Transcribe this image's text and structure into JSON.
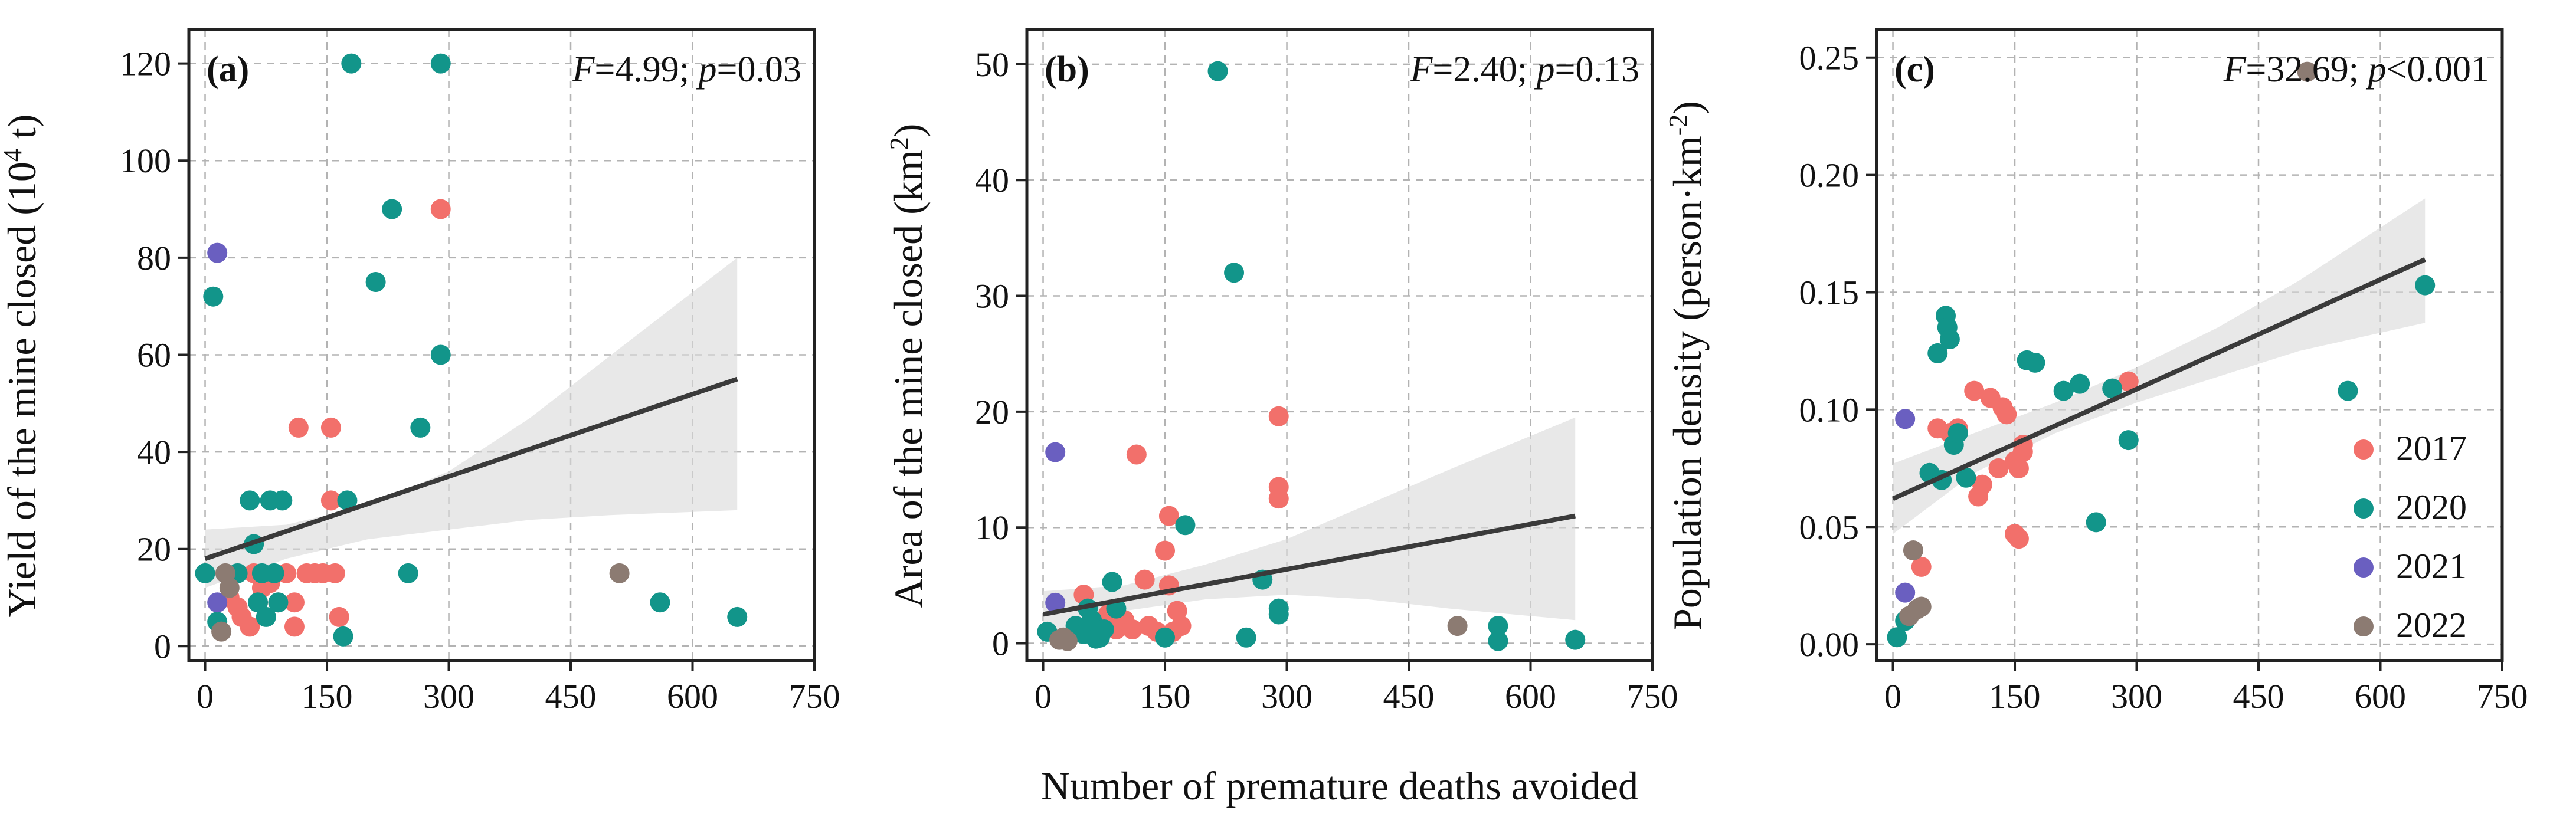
{
  "figure": {
    "shared_xlabel": "Number of premature deaths avoided"
  },
  "colors": {
    "2017": "#f2706b",
    "2020": "#12958a",
    "2021": "#6a5fc0",
    "2022": "#8c7b72",
    "fit": "#3a3a3a",
    "band": "#d9d9d9"
  },
  "legend": [
    {
      "label": "2017",
      "series": "2017"
    },
    {
      "label": "2020",
      "series": "2020"
    },
    {
      "label": "2021",
      "series": "2021"
    },
    {
      "label": "2022",
      "series": "2022"
    }
  ],
  "chart_data": [
    {
      "type": "scatter",
      "panel": "(a)",
      "stat_label": "F=4.99; p=0.03",
      "stat": {
        "F_sym": "F",
        "F_val": "=4.99; ",
        "p_sym": "p",
        "p_val": "=0.03"
      },
      "ylabel": "Yield of the mine closed (10^4 t)",
      "ylabel_parts": {
        "pre": "Yield of the mine closed (10",
        "sup": "4",
        "post": " t)"
      },
      "xlim": [
        -20,
        750
      ],
      "ylim": [
        -3,
        127
      ],
      "xticks": [
        0,
        150,
        300,
        450,
        600,
        750
      ],
      "xtick_labels": [
        "0",
        "150",
        "300",
        "450",
        "600",
        "750"
      ],
      "yticks": [
        0,
        20,
        40,
        60,
        80,
        100,
        120
      ],
      "ytick_labels": [
        "0",
        "20",
        "40",
        "60",
        "80",
        "100",
        "120"
      ],
      "fit": {
        "x": [
          0,
          655
        ],
        "y": [
          18,
          55
        ]
      },
      "band": {
        "x": [
          0,
          100,
          200,
          300,
          400,
          500,
          655
        ],
        "lower": [
          12,
          18,
          22,
          24,
          26,
          27,
          28
        ],
        "upper": [
          24,
          25,
          29,
          36,
          47,
          60,
          80
        ]
      },
      "series": [
        {
          "name": "2017",
          "points": [
            [
              30,
              10
            ],
            [
              40,
              8
            ],
            [
              45,
              6
            ],
            [
              55,
              4
            ],
            [
              60,
              15
            ],
            [
              65,
              9
            ],
            [
              70,
              12
            ],
            [
              80,
              13
            ],
            [
              90,
              9
            ],
            [
              100,
              15
            ],
            [
              110,
              9
            ],
            [
              110,
              4
            ],
            [
              115,
              45
            ],
            [
              125,
              15
            ],
            [
              135,
              15
            ],
            [
              145,
              15
            ],
            [
              155,
              30
            ],
            [
              155,
              45
            ],
            [
              160,
              15
            ],
            [
              165,
              6
            ],
            [
              290,
              90
            ]
          ]
        },
        {
          "name": "2020",
          "points": [
            [
              0,
              15
            ],
            [
              10,
              72
            ],
            [
              15,
              5
            ],
            [
              40,
              15
            ],
            [
              55,
              30
            ],
            [
              60,
              21
            ],
            [
              65,
              9
            ],
            [
              70,
              15
            ],
            [
              75,
              6
            ],
            [
              80,
              30
            ],
            [
              85,
              15
            ],
            [
              90,
              9
            ],
            [
              95,
              30
            ],
            [
              170,
              2
            ],
            [
              175,
              30
            ],
            [
              180,
              120
            ],
            [
              210,
              75
            ],
            [
              230,
              90
            ],
            [
              250,
              15
            ],
            [
              265,
              45
            ],
            [
              290,
              60
            ],
            [
              290,
              120
            ],
            [
              560,
              9
            ],
            [
              655,
              6
            ]
          ]
        },
        {
          "name": "2021",
          "points": [
            [
              15,
              81
            ],
            [
              15,
              9
            ]
          ]
        },
        {
          "name": "2022",
          "points": [
            [
              20,
              3
            ],
            [
              25,
              15
            ],
            [
              30,
              12
            ],
            [
              510,
              15
            ]
          ]
        }
      ]
    },
    {
      "type": "scatter",
      "panel": "(b)",
      "stat_label": "F=2.40; p=0.13",
      "stat": {
        "F_sym": "F",
        "F_val": "=2.40; ",
        "p_sym": "p",
        "p_val": "=0.13"
      },
      "ylabel": "Area of the mine closed (km^2)",
      "ylabel_parts": {
        "pre": "Area of the mine closed (km",
        "sup": "2",
        "post": ")"
      },
      "xlim": [
        -20,
        750
      ],
      "ylim": [
        -1.5,
        53
      ],
      "xticks": [
        0,
        150,
        300,
        450,
        600,
        750
      ],
      "xtick_labels": [
        "0",
        "150",
        "300",
        "450",
        "600",
        "750"
      ],
      "yticks": [
        0,
        10,
        20,
        30,
        40,
        50
      ],
      "ytick_labels": [
        "0",
        "10",
        "20",
        "30",
        "40",
        "50"
      ],
      "fit": {
        "x": [
          0,
          655
        ],
        "y": [
          2.5,
          11
        ]
      },
      "band": {
        "x": [
          0,
          100,
          200,
          300,
          400,
          500,
          655
        ],
        "lower": [
          0.5,
          2.8,
          3.8,
          4.2,
          3.8,
          3.0,
          2.0
        ],
        "upper": [
          4.5,
          5.0,
          6.8,
          9.0,
          12.0,
          15.0,
          19.5
        ]
      },
      "series": [
        {
          "name": "2017",
          "points": [
            [
              50,
              4.2
            ],
            [
              60,
              1.5
            ],
            [
              80,
              2.5
            ],
            [
              90,
              1.2
            ],
            [
              100,
              2
            ],
            [
              110,
              1.2
            ],
            [
              115,
              16.3
            ],
            [
              125,
              5.5
            ],
            [
              130,
              1.5
            ],
            [
              140,
              1.0
            ],
            [
              150,
              8.0
            ],
            [
              155,
              11
            ],
            [
              155,
              5.0
            ],
            [
              160,
              1.0
            ],
            [
              165,
              2.8
            ],
            [
              170,
              1.5
            ],
            [
              290,
              19.6
            ],
            [
              290,
              13.5
            ],
            [
              290,
              12.5
            ]
          ]
        },
        {
          "name": "2020",
          "points": [
            [
              5,
              1.0
            ],
            [
              40,
              1.5
            ],
            [
              50,
              0.8
            ],
            [
              55,
              3.0
            ],
            [
              60,
              2.0
            ],
            [
              65,
              0.4
            ],
            [
              70,
              0.5
            ],
            [
              75,
              1.2
            ],
            [
              85,
              5.3
            ],
            [
              90,
              3.0
            ],
            [
              150,
              0.5
            ],
            [
              175,
              10.2
            ],
            [
              215,
              49.4
            ],
            [
              235,
              32
            ],
            [
              250,
              0.5
            ],
            [
              270,
              5.5
            ],
            [
              290,
              3.0
            ],
            [
              290,
              2.5
            ],
            [
              560,
              1.5
            ],
            [
              560,
              0.2
            ],
            [
              655,
              0.3
            ]
          ]
        },
        {
          "name": "2021",
          "points": [
            [
              15,
              16.5
            ],
            [
              15,
              3.5
            ]
          ]
        },
        {
          "name": "2022",
          "points": [
            [
              20,
              0.3
            ],
            [
              25,
              0.5
            ],
            [
              30,
              0.2
            ],
            [
              510,
              1.5
            ]
          ]
        }
      ]
    },
    {
      "type": "scatter",
      "panel": "(c)",
      "stat_label": "F=32.69; p<0.001",
      "stat": {
        "F_sym": "F",
        "F_val": "=32.69; ",
        "p_sym": "p",
        "p_val": "<0.001"
      },
      "ylabel": "Population density (person·km^-2)",
      "ylabel_parts": {
        "pre": "Population density (person·km",
        "sup": "-2",
        "post": ")"
      },
      "xlim": [
        -20,
        750
      ],
      "ylim": [
        -0.007,
        0.262
      ],
      "xticks": [
        0,
        150,
        300,
        450,
        600,
        750
      ],
      "xtick_labels": [
        "0",
        "150",
        "300",
        "450",
        "600",
        "750"
      ],
      "yticks": [
        0,
        0.05,
        0.1,
        0.15,
        0.2,
        0.25
      ],
      "ytick_labels": [
        "0.00",
        "0.05",
        "0.10",
        "0.15",
        "0.20",
        "0.25"
      ],
      "fit": {
        "x": [
          0,
          655
        ],
        "y": [
          0.062,
          0.164
        ]
      },
      "band": {
        "x": [
          0,
          100,
          200,
          300,
          400,
          500,
          655
        ],
        "lower": [
          0.047,
          0.073,
          0.09,
          0.103,
          0.114,
          0.125,
          0.137
        ],
        "upper": [
          0.077,
          0.09,
          0.103,
          0.118,
          0.135,
          0.155,
          0.19
        ]
      },
      "series": [
        {
          "name": "2017",
          "points": [
            [
              35,
              0.033
            ],
            [
              55,
              0.092
            ],
            [
              70,
              0.09
            ],
            [
              80,
              0.092
            ],
            [
              100,
              0.108
            ],
            [
              105,
              0.063
            ],
            [
              110,
              0.068
            ],
            [
              120,
              0.105
            ],
            [
              130,
              0.075
            ],
            [
              135,
              0.101
            ],
            [
              140,
              0.098
            ],
            [
              150,
              0.078
            ],
            [
              150,
              0.047
            ],
            [
              155,
              0.045
            ],
            [
              155,
              0.075
            ],
            [
              160,
              0.082
            ],
            [
              160,
              0.085
            ],
            [
              290,
              0.112
            ]
          ]
        },
        {
          "name": "2020",
          "points": [
            [
              5,
              0.003
            ],
            [
              15,
              0.01
            ],
            [
              45,
              0.073
            ],
            [
              55,
              0.124
            ],
            [
              60,
              0.07
            ],
            [
              65,
              0.14
            ],
            [
              67,
              0.135
            ],
            [
              70,
              0.13
            ],
            [
              75,
              0.085
            ],
            [
              80,
              0.09
            ],
            [
              90,
              0.071
            ],
            [
              165,
              0.121
            ],
            [
              175,
              0.12
            ],
            [
              210,
              0.108
            ],
            [
              230,
              0.111
            ],
            [
              250,
              0.052
            ],
            [
              270,
              0.109
            ],
            [
              290,
              0.087
            ],
            [
              560,
              0.108
            ],
            [
              655,
              0.153
            ]
          ]
        },
        {
          "name": "2021",
          "points": [
            [
              15,
              0.096
            ],
            [
              15,
              0.022
            ]
          ]
        },
        {
          "name": "2022",
          "points": [
            [
              20,
              0.012
            ],
            [
              25,
              0.04
            ],
            [
              30,
              0.015
            ],
            [
              35,
              0.016
            ],
            [
              510,
              0.244
            ]
          ]
        }
      ]
    }
  ]
}
